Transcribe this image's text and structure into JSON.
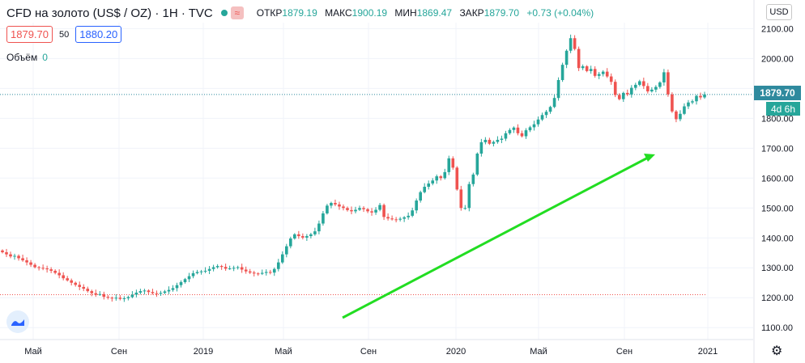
{
  "header": {
    "symbol": "CFD на золото (US$ / OZ) · 1H · TVC",
    "ohlc": [
      {
        "label": "ОТКР",
        "value": "1879.19"
      },
      {
        "label": "МАКС",
        "value": "1900.19"
      },
      {
        "label": "МИН",
        "value": "1869.47"
      },
      {
        "label": "ЗАКР",
        "value": "1879.70"
      }
    ],
    "change": "+0.73 (+0.04%)",
    "icon": "≈"
  },
  "prices": {
    "sell": "1879.70",
    "spread": "50",
    "buy": "1880.20"
  },
  "volume": {
    "label": "Объём",
    "value": "0"
  },
  "currency": "USD",
  "price_tag": "1879.70",
  "countdown": "4d 6h",
  "colors": {
    "up": "#26a69a",
    "down": "#ef5350",
    "arrow": "#22dd22",
    "grid": "#f0f3fa"
  },
  "chart_data": {
    "type": "candlestick",
    "title": "CFD на золото (US$ / OZ)",
    "ylim": [
      1060,
      2120
    ],
    "y_ticks": [
      1100,
      1200,
      1300,
      1400,
      1500,
      1600,
      1700,
      1800,
      1900,
      2000,
      2100
    ],
    "y_tick_labels": [
      "1100.00",
      "1200.00",
      "1300.00",
      "1400.00",
      "1500.00",
      "1600.00",
      "1700.00",
      "1800.00",
      "1900.00",
      "2000.00",
      "2100.00"
    ],
    "x_labels": [
      "Май",
      "Сен",
      "2019",
      "Май",
      "Сен",
      "2020",
      "Май",
      "Сен",
      "2021"
    ],
    "last_price": 1879.7,
    "dashed_level": 1210,
    "closes": [
      1352,
      1345,
      1338,
      1340,
      1332,
      1325,
      1318,
      1310,
      1302,
      1300,
      1298,
      1295,
      1290,
      1283,
      1275,
      1265,
      1258,
      1250,
      1243,
      1236,
      1230,
      1222,
      1215,
      1210,
      1212,
      1203,
      1200,
      1198,
      1200,
      1196,
      1198,
      1202,
      1210,
      1217,
      1222,
      1224,
      1219,
      1215,
      1213,
      1216,
      1221,
      1226,
      1232,
      1242,
      1252,
      1262,
      1272,
      1282,
      1286,
      1288,
      1290,
      1296,
      1302,
      1306,
      1303,
      1297,
      1298,
      1300,
      1302,
      1294,
      1288,
      1284,
      1281,
      1280,
      1283,
      1286,
      1284,
      1296,
      1318,
      1345,
      1372,
      1398,
      1412,
      1406,
      1401,
      1406,
      1412,
      1422,
      1448,
      1482,
      1508,
      1517,
      1512,
      1505,
      1500,
      1493,
      1489,
      1494,
      1500,
      1496,
      1489,
      1485,
      1494,
      1510,
      1470,
      1465,
      1462,
      1461,
      1464,
      1469,
      1474,
      1492,
      1525,
      1553,
      1571,
      1582,
      1592,
      1606,
      1600,
      1620,
      1666,
      1635,
      1562,
      1500,
      1500,
      1580,
      1612,
      1682,
      1720,
      1728,
      1715,
      1721,
      1728,
      1732,
      1750,
      1761,
      1769,
      1750,
      1740,
      1760,
      1770,
      1780,
      1796,
      1811,
      1822,
      1838,
      1868,
      1928,
      1979,
      2026,
      2068,
      2032,
      1968,
      1974,
      1958,
      1965,
      1942,
      1948,
      1956,
      1940,
      1922,
      1878,
      1864,
      1885,
      1880,
      1902,
      1912,
      1924,
      1908,
      1890,
      1896,
      1905,
      1920,
      1954,
      1880,
      1823,
      1797,
      1815,
      1840,
      1853,
      1857,
      1875,
      1870,
      1879.7
    ]
  }
}
